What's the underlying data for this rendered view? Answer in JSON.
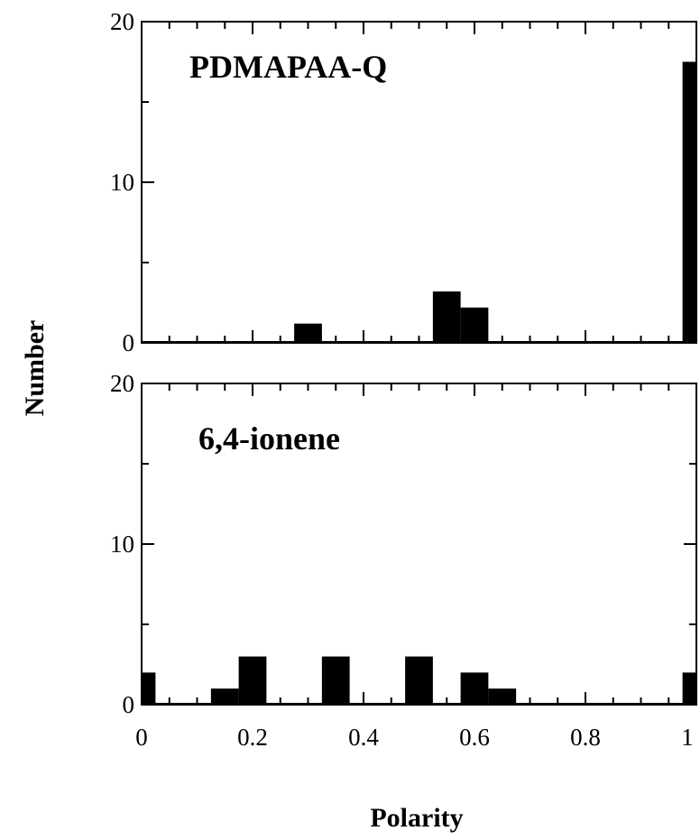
{
  "chart_data": {
    "type": "bar",
    "xlabel": "Polarity",
    "ylabel": "Number",
    "xlim": [
      0,
      1
    ],
    "bin_width": 0.05,
    "x_ticks": [
      0,
      0.2,
      0.4,
      0.6,
      0.8,
      1
    ],
    "x_tick_labels": [
      "0",
      "0.2",
      "0.4",
      "0.6",
      "0.8",
      "1"
    ],
    "panels": [
      {
        "title": "PDMAPAA-Q",
        "ylim": [
          0,
          20
        ],
        "y_ticks": [
          0,
          10,
          20
        ],
        "y_tick_labels": [
          "0",
          "10",
          "20"
        ],
        "bars": [
          {
            "x": 0.3,
            "value": 1.2
          },
          {
            "x": 0.55,
            "value": 3.2
          },
          {
            "x": 0.6,
            "value": 2.2
          },
          {
            "x": 1.0,
            "value": 17.5
          }
        ]
      },
      {
        "title": "6,4-ionene",
        "ylim": [
          0,
          20
        ],
        "y_ticks": [
          0,
          10,
          20
        ],
        "y_tick_labels": [
          "0",
          "10",
          "20"
        ],
        "bars": [
          {
            "x": 0.0,
            "value": 2
          },
          {
            "x": 0.15,
            "value": 1
          },
          {
            "x": 0.2,
            "value": 3
          },
          {
            "x": 0.35,
            "value": 3
          },
          {
            "x": 0.5,
            "value": 3
          },
          {
            "x": 0.6,
            "value": 2
          },
          {
            "x": 0.65,
            "value": 1
          },
          {
            "x": 1.0,
            "value": 2
          }
        ]
      }
    ]
  }
}
